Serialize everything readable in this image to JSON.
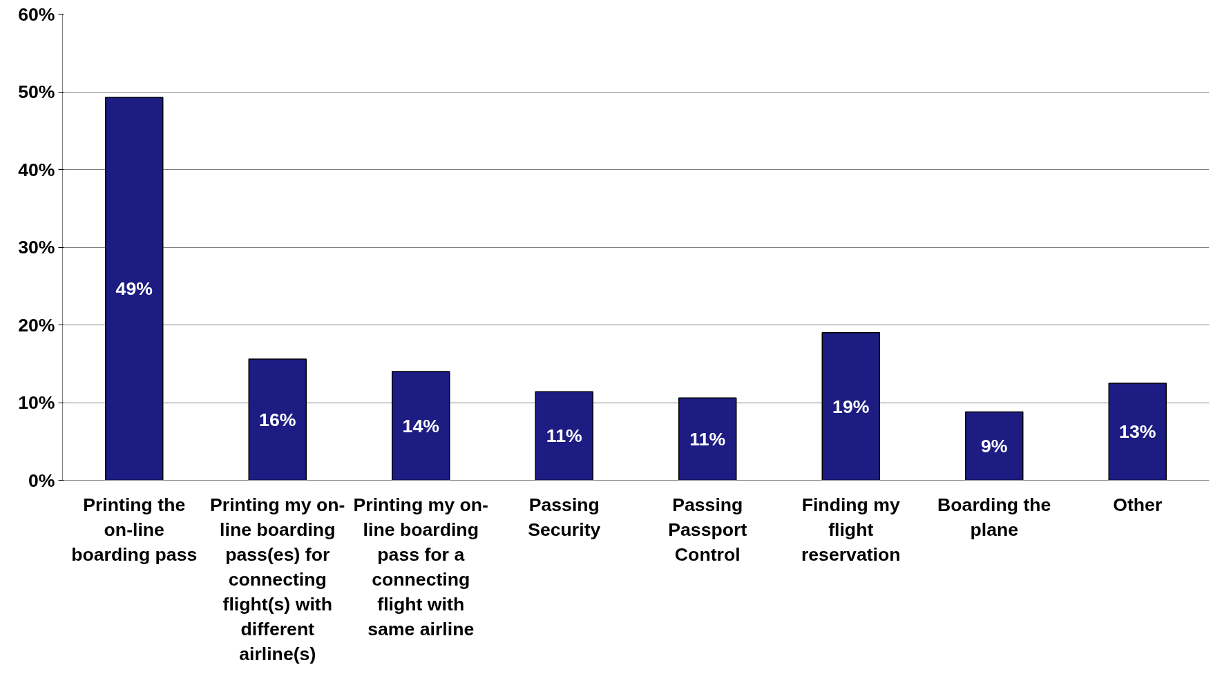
{
  "chart_data": {
    "type": "bar",
    "categories": [
      "Printing the on-line boarding pass",
      "Printing my on-line boarding pass(es) for connecting flight(s) with different airline(s)",
      "Printing my on-line boarding pass for a connecting flight with same airline",
      "Passing Security",
      "Passing Passport Control",
      "Finding my flight reservation",
      "Boarding the plane",
      "Other"
    ],
    "values": [
      49.3,
      15.6,
      14.0,
      11.4,
      10.6,
      19.0,
      8.8,
      12.5
    ],
    "value_labels": [
      "49%",
      "16%",
      "14%",
      "11%",
      "11%",
      "19%",
      "9%",
      "13%"
    ],
    "color": "#1c1c82",
    "ylim": [
      0,
      60
    ],
    "yticks": [
      {
        "value": 0,
        "label": "0%"
      },
      {
        "value": 10,
        "label": "10%"
      },
      {
        "value": 20,
        "label": "20%"
      },
      {
        "value": 30,
        "label": "30%"
      },
      {
        "value": 40,
        "label": "40%"
      },
      {
        "value": 50,
        "label": "50%"
      },
      {
        "value": 60,
        "label": "60%"
      }
    ],
    "grid": "y"
  }
}
